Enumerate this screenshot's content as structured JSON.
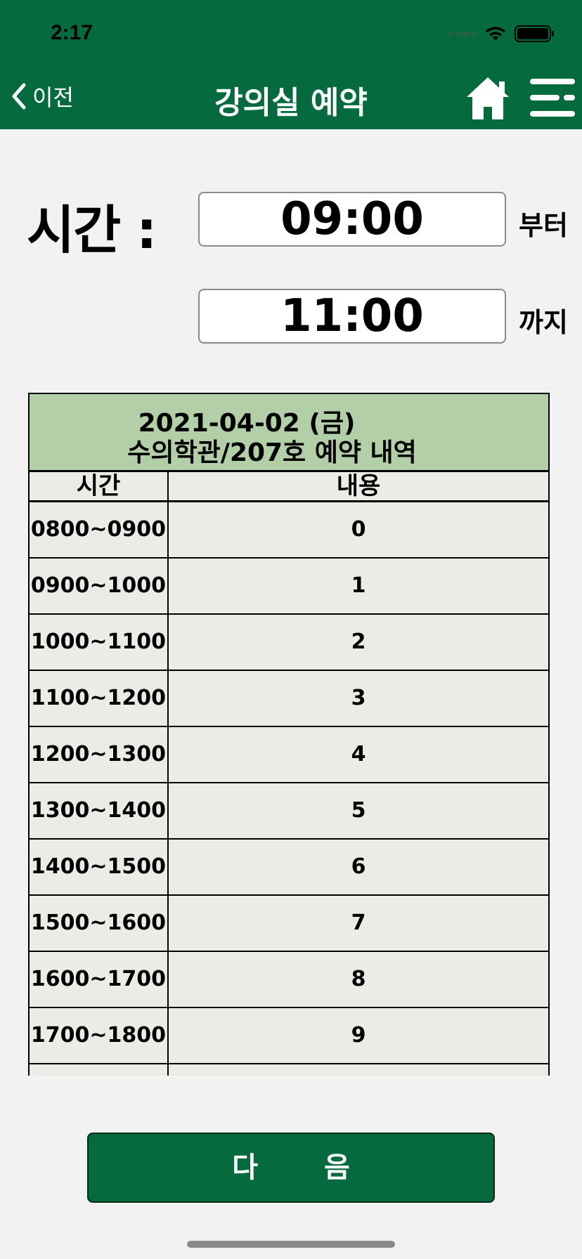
{
  "status_bar": {
    "time": "2:17"
  },
  "nav": {
    "back_label": "이전",
    "title": "강의실 예약"
  },
  "time": {
    "label": "시간 :",
    "start": "09:00",
    "start_suffix": "부터",
    "end": "11:00",
    "end_suffix": "까지"
  },
  "table": {
    "date": "2021-04-02 (금)",
    "place": "수의학관/207호 예약 내역",
    "col_time": "시간",
    "col_content": "내용",
    "rows": [
      {
        "time": "0800~0900",
        "content": "0"
      },
      {
        "time": "0900~1000",
        "content": "1"
      },
      {
        "time": "1000~1100",
        "content": "2"
      },
      {
        "time": "1100~1200",
        "content": "3"
      },
      {
        "time": "1200~1300",
        "content": "4"
      },
      {
        "time": "1300~1400",
        "content": "5"
      },
      {
        "time": "1400~1500",
        "content": "6"
      },
      {
        "time": "1500~1600",
        "content": "7"
      },
      {
        "time": "1600~1700",
        "content": "8"
      },
      {
        "time": "1700~1800",
        "content": "9"
      },
      {
        "time": "",
        "content": ""
      }
    ]
  },
  "next_label": "다 음",
  "colors": {
    "header": "#056b3f",
    "table_head": "#b3cfa7",
    "cell": "#ecebe6"
  }
}
